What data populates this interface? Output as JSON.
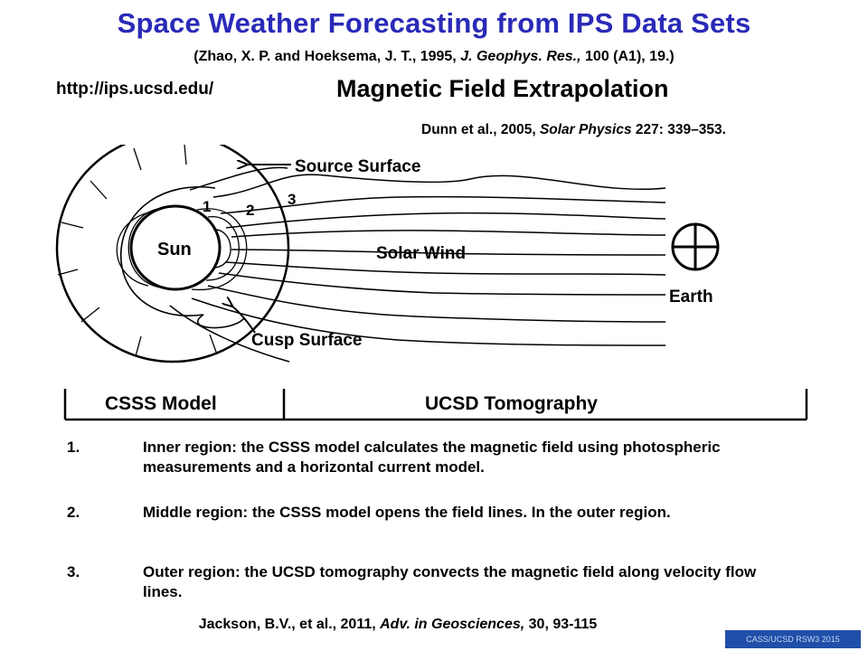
{
  "header": {
    "title": "Space Weather Forecasting from IPS Data Sets",
    "reference_top": {
      "authors": "(Zhao, X. P. and Hoeksema, J. T., 1995, ",
      "journal": "J. Geophys. Res.,",
      "rest": " 100 (A1), 19.)"
    },
    "url": "http://ips.ucsd.edu/",
    "subtitle": "Magnetic Field Extrapolation",
    "reference_dunn": {
      "authors": "Dunn et al., 2005, ",
      "journal": "Solar Physics",
      "rest": " 227: 339–353."
    }
  },
  "diagram": {
    "labels": {
      "source_surface": "Source Surface",
      "solar_wind": "Solar Wind",
      "cusp_surface": "Cusp Surface",
      "sun": "Sun",
      "earth": "Earth",
      "region1": "1",
      "region2": "2",
      "region3": "3"
    },
    "bar": {
      "left": "CSSS Model",
      "right": "UCSD Tomography"
    }
  },
  "items": [
    {
      "num": "1.",
      "text": "Inner region: the CSSS model calculates the magnetic field using photospheric measurements and a horizontal current model."
    },
    {
      "num": "2.",
      "text": "Middle region: the CSSS model opens the field lines. In the outer region."
    },
    {
      "num": "3.",
      "text": "Outer region: the UCSD tomography convects the magnetic field along velocity flow lines."
    }
  ],
  "reference_bottom": {
    "authors": "Jackson, B.V., et al., 2011, ",
    "journal": "Adv. in Geosciences,",
    "rest": " 30, 93-115"
  },
  "footer": "CASS/UCSD  RSW3 2015",
  "colors": {
    "title": "#2a2ab8",
    "footer_bg": "#1f4fa8"
  }
}
